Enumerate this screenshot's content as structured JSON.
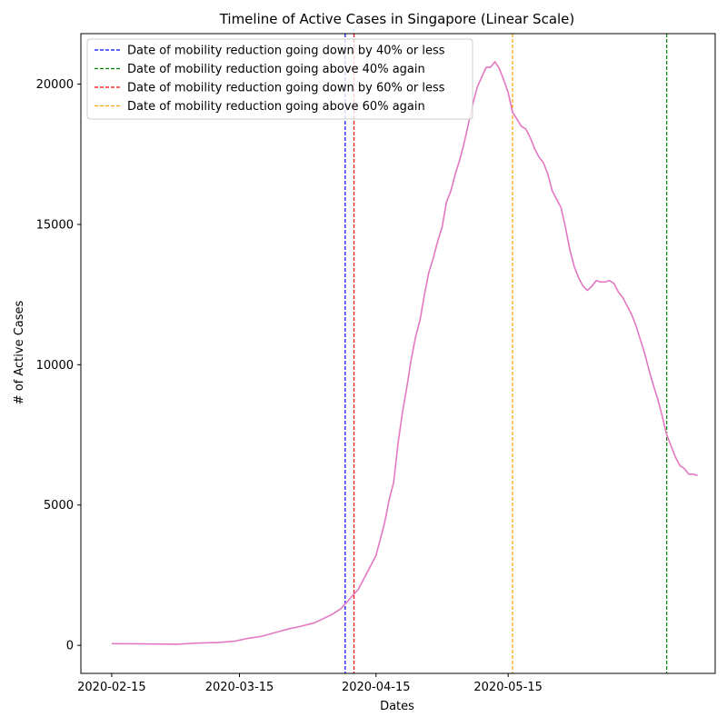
{
  "chart_data": {
    "type": "line",
    "title": "Timeline of Active Cases in Singapore (Linear Scale)",
    "xlabel": "Dates",
    "ylabel": "# of Active Cases",
    "xlim": [
      "2020-02-08",
      "2020-07-01"
    ],
    "ylim": [
      -1000,
      21800
    ],
    "x_ticks": [
      "2020-02-15",
      "2020-03-15",
      "2020-04-15",
      "2020-05-15"
    ],
    "y_ticks": [
      0,
      5000,
      10000,
      15000,
      20000
    ],
    "grid": false,
    "legend_position": "top-left",
    "series": [
      {
        "color": "#e377c2",
        "points": [
          [
            "2020-02-15",
            60
          ],
          [
            "2020-02-20",
            55
          ],
          [
            "2020-02-25",
            45
          ],
          [
            "2020-03-01",
            40
          ],
          [
            "2020-03-05",
            80
          ],
          [
            "2020-03-10",
            100
          ],
          [
            "2020-03-14",
            150
          ],
          [
            "2020-03-17",
            250
          ],
          [
            "2020-03-20",
            320
          ],
          [
            "2020-03-23",
            450
          ],
          [
            "2020-03-26",
            580
          ],
          [
            "2020-03-29",
            680
          ],
          [
            "2020-04-01",
            800
          ],
          [
            "2020-04-03",
            950
          ],
          [
            "2020-04-05",
            1100
          ],
          [
            "2020-04-07",
            1300
          ],
          [
            "2020-04-09",
            1650
          ],
          [
            "2020-04-11",
            2000
          ],
          [
            "2020-04-13",
            2600
          ],
          [
            "2020-04-15",
            3200
          ],
          [
            "2020-04-16",
            3800
          ],
          [
            "2020-04-17",
            4400
          ],
          [
            "2020-04-18",
            5200
          ],
          [
            "2020-04-19",
            5800
          ],
          [
            "2020-04-20",
            7200
          ],
          [
            "2020-04-21",
            8300
          ],
          [
            "2020-04-22",
            9200
          ],
          [
            "2020-04-23",
            10200
          ],
          [
            "2020-04-24",
            11000
          ],
          [
            "2020-04-25",
            11600
          ],
          [
            "2020-04-26",
            12500
          ],
          [
            "2020-04-27",
            13300
          ],
          [
            "2020-04-28",
            13800
          ],
          [
            "2020-04-29",
            14400
          ],
          [
            "2020-04-30",
            14900
          ],
          [
            "2020-05-01",
            15800
          ],
          [
            "2020-05-02",
            16200
          ],
          [
            "2020-05-03",
            16800
          ],
          [
            "2020-05-04",
            17300
          ],
          [
            "2020-05-05",
            17900
          ],
          [
            "2020-05-06",
            18600
          ],
          [
            "2020-05-07",
            19300
          ],
          [
            "2020-05-08",
            19900
          ],
          [
            "2020-05-09",
            20250
          ],
          [
            "2020-05-10",
            20600
          ],
          [
            "2020-05-11",
            20600
          ],
          [
            "2020-05-12",
            20800
          ],
          [
            "2020-05-13",
            20550
          ],
          [
            "2020-05-14",
            20150
          ],
          [
            "2020-05-15",
            19700
          ],
          [
            "2020-05-16",
            19000
          ],
          [
            "2020-05-17",
            18750
          ],
          [
            "2020-05-18",
            18500
          ],
          [
            "2020-05-19",
            18400
          ],
          [
            "2020-05-20",
            18100
          ],
          [
            "2020-05-21",
            17700
          ],
          [
            "2020-05-22",
            17400
          ],
          [
            "2020-05-23",
            17200
          ],
          [
            "2020-05-24",
            16800
          ],
          [
            "2020-05-25",
            16200
          ],
          [
            "2020-05-26",
            15900
          ],
          [
            "2020-05-27",
            15600
          ],
          [
            "2020-05-28",
            14900
          ],
          [
            "2020-05-29",
            14100
          ],
          [
            "2020-05-30",
            13500
          ],
          [
            "2020-05-31",
            13100
          ],
          [
            "2020-06-01",
            12800
          ],
          [
            "2020-06-02",
            12650
          ],
          [
            "2020-06-03",
            12800
          ],
          [
            "2020-06-04",
            13000
          ],
          [
            "2020-06-05",
            12950
          ],
          [
            "2020-06-06",
            12950
          ],
          [
            "2020-06-07",
            13000
          ],
          [
            "2020-06-08",
            12900
          ],
          [
            "2020-06-09",
            12600
          ],
          [
            "2020-06-10",
            12400
          ],
          [
            "2020-06-11",
            12100
          ],
          [
            "2020-06-12",
            11800
          ],
          [
            "2020-06-13",
            11400
          ],
          [
            "2020-06-14",
            10900
          ],
          [
            "2020-06-15",
            10400
          ],
          [
            "2020-06-16",
            9800
          ],
          [
            "2020-06-17",
            9250
          ],
          [
            "2020-06-18",
            8750
          ],
          [
            "2020-06-19",
            8150
          ],
          [
            "2020-06-20",
            7500
          ],
          [
            "2020-06-21",
            7100
          ],
          [
            "2020-06-22",
            6700
          ],
          [
            "2020-06-23",
            6400
          ],
          [
            "2020-06-24",
            6300
          ],
          [
            "2020-06-25",
            6100
          ],
          [
            "2020-06-26",
            6100
          ],
          [
            "2020-06-27",
            6050
          ]
        ]
      }
    ],
    "vlines": [
      {
        "date": "2020-04-08",
        "color": "#0000ff",
        "label": "Date of mobility reduction going down by 40% or less"
      },
      {
        "date": "2020-06-20",
        "color": "#008000",
        "label": "Date of mobility reduction going above 40% again"
      },
      {
        "date": "2020-04-10",
        "color": "#ff0000",
        "label": "Date of mobility reduction going down by 60% or less"
      },
      {
        "date": "2020-05-16",
        "color": "#ffa500",
        "label": "Date of mobility reduction going above 60% again"
      }
    ]
  }
}
